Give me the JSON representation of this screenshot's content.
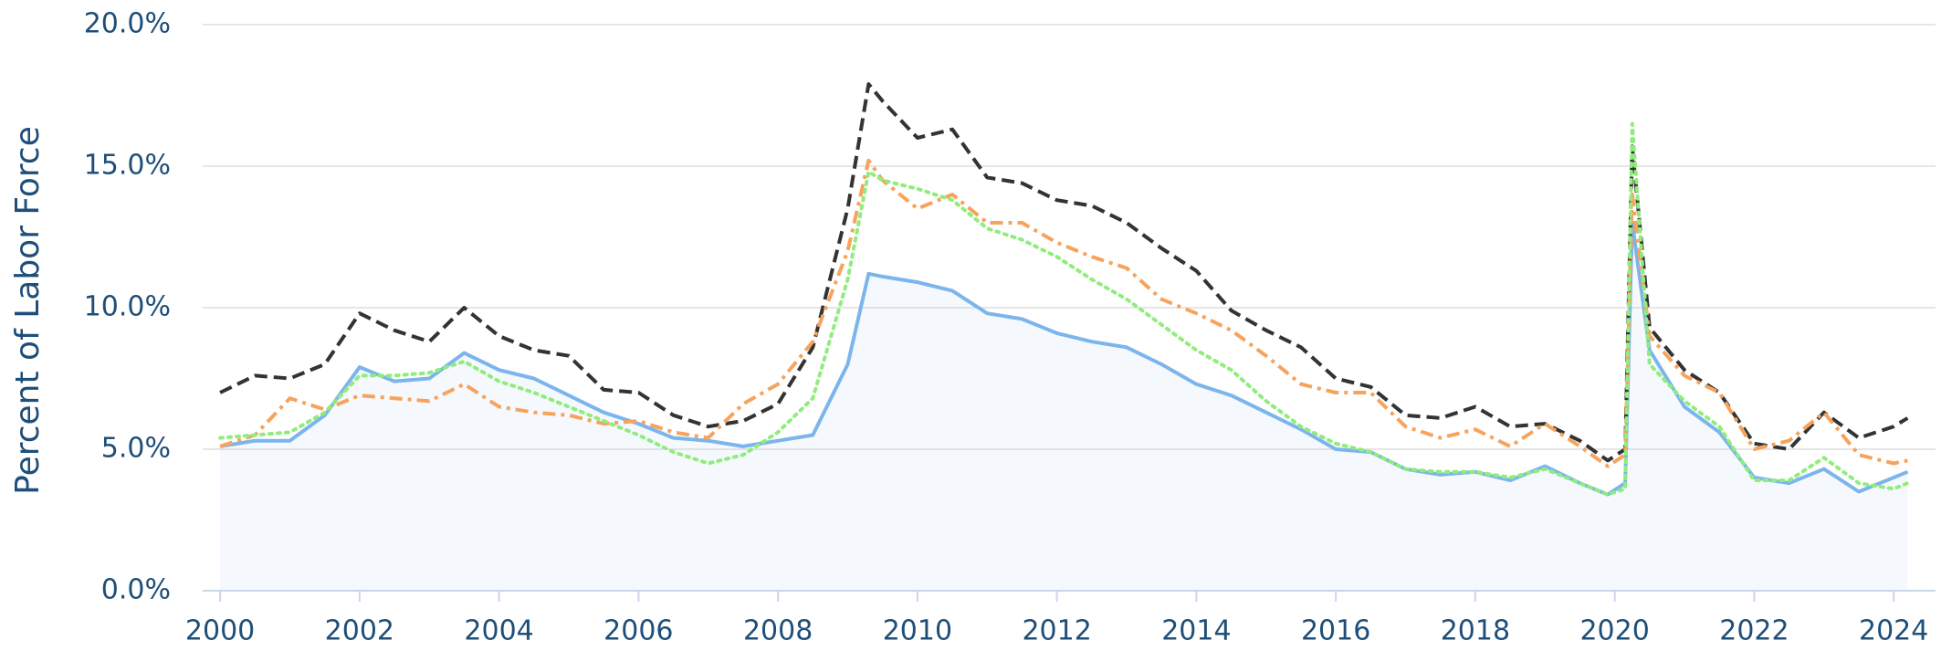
{
  "chart_data": {
    "type": "line",
    "y_label": "Percent of Labor Force",
    "x": [
      2000.0,
      2000.5,
      2001.0,
      2001.5,
      2002.0,
      2002.5,
      2003.0,
      2003.5,
      2004.0,
      2004.5,
      2005.0,
      2005.5,
      2006.0,
      2006.5,
      2007.0,
      2007.5,
      2008.0,
      2008.5,
      2009.0,
      2009.3,
      2009.5,
      2010.0,
      2010.5,
      2011.0,
      2011.5,
      2012.0,
      2012.5,
      2013.0,
      2013.5,
      2014.0,
      2014.5,
      2015.0,
      2015.5,
      2016.0,
      2016.5,
      2017.0,
      2017.5,
      2018.0,
      2018.5,
      2019.0,
      2019.5,
      2019.9,
      2020.15,
      2020.25,
      2020.5,
      2021.0,
      2021.5,
      2022.0,
      2022.5,
      2023.0,
      2023.5,
      2024.0,
      2024.2
    ],
    "series": [
      {
        "color": "#7cb5ec",
        "style": "solid",
        "area": true,
        "values": [
          5.1,
          5.3,
          5.3,
          6.2,
          7.9,
          7.4,
          7.5,
          8.4,
          7.8,
          7.5,
          6.9,
          6.3,
          5.9,
          5.4,
          5.3,
          5.1,
          5.3,
          5.5,
          8.0,
          11.2,
          11.1,
          10.9,
          10.6,
          9.8,
          9.6,
          9.1,
          8.8,
          8.6,
          8.0,
          7.3,
          6.9,
          6.3,
          5.7,
          5.0,
          4.9,
          4.3,
          4.1,
          4.2,
          3.9,
          4.4,
          3.8,
          3.4,
          3.8,
          13.0,
          8.5,
          6.5,
          5.6,
          4.0,
          3.8,
          4.3,
          3.5,
          4.0,
          4.2
        ]
      },
      {
        "color": "#333333",
        "style": "dashed",
        "area": false,
        "values": [
          7.0,
          7.6,
          7.5,
          8.0,
          9.8,
          9.2,
          8.8,
          10.0,
          9.0,
          8.5,
          8.3,
          7.1,
          7.0,
          6.2,
          5.8,
          6.0,
          6.6,
          8.6,
          13.5,
          17.9,
          17.3,
          16.0,
          16.3,
          14.6,
          14.4,
          13.8,
          13.6,
          13.0,
          12.1,
          11.3,
          9.9,
          9.2,
          8.6,
          7.5,
          7.2,
          6.2,
          6.1,
          6.5,
          5.8,
          5.9,
          5.3,
          4.6,
          5.0,
          15.7,
          9.3,
          7.8,
          7.0,
          5.2,
          5.0,
          6.3,
          5.4,
          5.8,
          6.1
        ]
      },
      {
        "color": "#f7a35c",
        "style": "dashdot",
        "area": false,
        "values": [
          5.1,
          5.5,
          6.8,
          6.4,
          6.9,
          6.8,
          6.7,
          7.3,
          6.5,
          6.3,
          6.2,
          5.9,
          6.0,
          5.6,
          5.4,
          6.6,
          7.3,
          8.8,
          12.0,
          15.2,
          14.5,
          13.5,
          14.0,
          13.0,
          13.0,
          12.3,
          11.8,
          11.4,
          10.3,
          9.8,
          9.2,
          8.3,
          7.3,
          7.0,
          7.0,
          5.8,
          5.4,
          5.7,
          5.1,
          5.9,
          5.1,
          4.4,
          4.8,
          14.0,
          9.0,
          7.6,
          7.0,
          5.0,
          5.3,
          6.3,
          4.8,
          4.5,
          4.6
        ]
      },
      {
        "color": "#90ed7d",
        "style": "dotted",
        "area": false,
        "values": [
          5.4,
          5.5,
          5.6,
          6.3,
          7.6,
          7.6,
          7.7,
          8.1,
          7.4,
          7.0,
          6.5,
          6.0,
          5.5,
          4.9,
          4.5,
          4.8,
          5.6,
          6.8,
          11.0,
          14.8,
          14.5,
          14.2,
          13.8,
          12.8,
          12.4,
          11.8,
          11.0,
          10.3,
          9.4,
          8.5,
          7.8,
          6.7,
          5.8,
          5.2,
          4.9,
          4.3,
          4.2,
          4.2,
          4.0,
          4.3,
          3.8,
          3.4,
          3.6,
          16.5,
          8.0,
          6.7,
          5.8,
          3.9,
          3.9,
          4.7,
          3.8,
          3.6,
          3.8
        ]
      }
    ],
    "xlim": [
      1999.75,
      2024.6
    ],
    "xticks": [
      2000,
      2002,
      2004,
      2006,
      2008,
      2010,
      2012,
      2014,
      2016,
      2018,
      2020,
      2022,
      2024
    ],
    "ylim": [
      0,
      20
    ],
    "yticks": [
      {
        "value": 0,
        "label": "0.0%"
      },
      {
        "value": 5,
        "label": "5.0%"
      },
      {
        "value": 10,
        "label": "10.0%"
      },
      {
        "value": 15,
        "label": "15.0%"
      },
      {
        "value": 20,
        "label": "20.0%"
      }
    ],
    "grid": true
  }
}
